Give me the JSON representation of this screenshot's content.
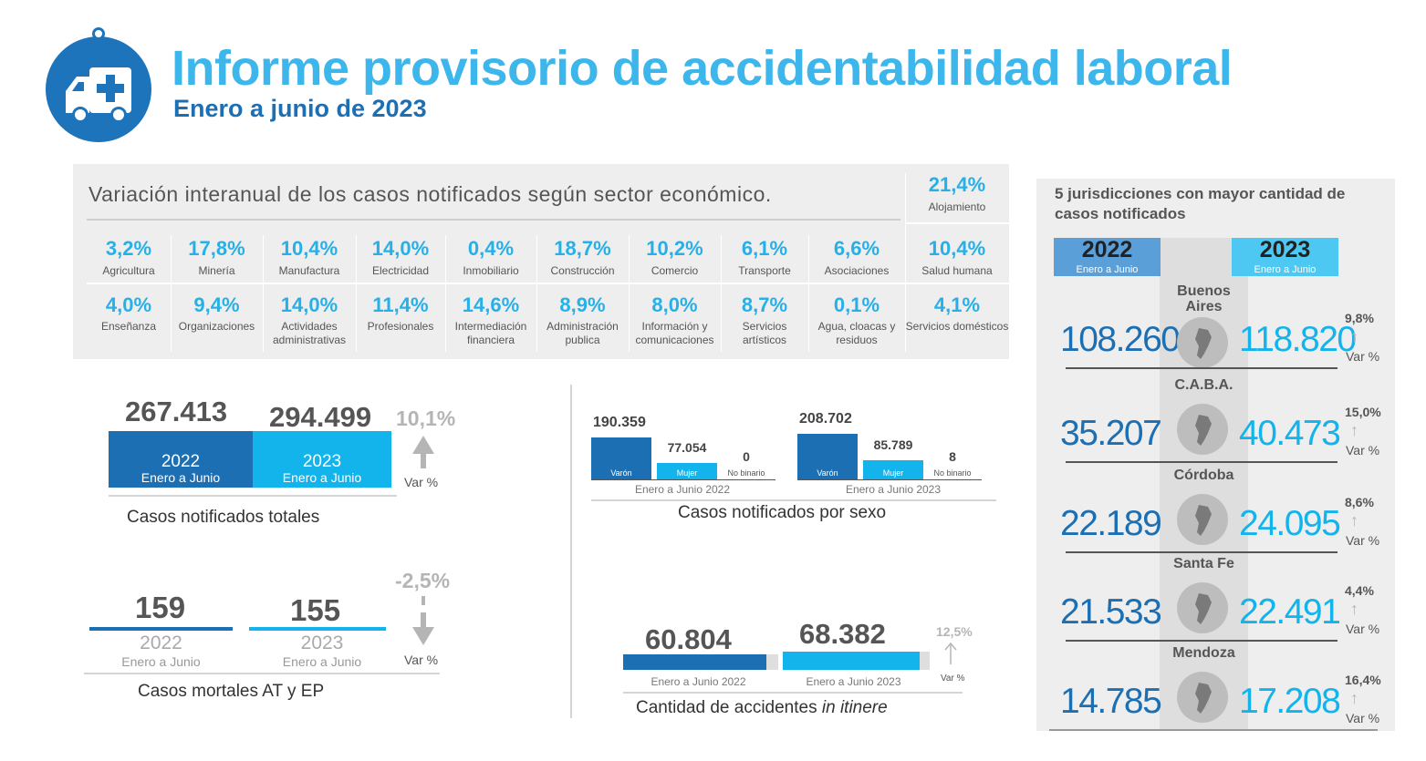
{
  "header": {
    "title": "Informe provisorio de accidentabilidad laboral",
    "subtitle": "Enero a junio de 2023",
    "logo_icon": "ambulance-icon"
  },
  "sectors": {
    "heading": "Variación interanual de los casos notificados según sector económico.",
    "items": [
      {
        "pct": "3,2%",
        "label": "Agricultura"
      },
      {
        "pct": "17,8%",
        "label": "Minería"
      },
      {
        "pct": "10,4%",
        "label": "Manufactura"
      },
      {
        "pct": "14,0%",
        "label": "Electricidad"
      },
      {
        "pct": "0,4%",
        "label": "Inmobiliario"
      },
      {
        "pct": "18,7%",
        "label": "Construcción"
      },
      {
        "pct": "10,2%",
        "label": "Comercio"
      },
      {
        "pct": "6,1%",
        "label": "Transporte"
      },
      {
        "pct": "6,6%",
        "label": "Asociaciones"
      },
      {
        "pct": "10,4%",
        "label": "Salud humana"
      },
      {
        "pct": "4,0%",
        "label": "Enseñanza"
      },
      {
        "pct": "9,4%",
        "label": "Organizaciones"
      },
      {
        "pct": "14,0%",
        "label": "Actividades administrativas"
      },
      {
        "pct": "11,4%",
        "label": "Profesionales"
      },
      {
        "pct": "14,6%",
        "label": "Intermediación financiera"
      },
      {
        "pct": "8,9%",
        "label": "Administración publica"
      },
      {
        "pct": "8,0%",
        "label": "Información y comunicaciones"
      },
      {
        "pct": "8,7%",
        "label": "Servicios artísticos"
      },
      {
        "pct": "0,1%",
        "label": "Agua, cloacas y residuos"
      },
      {
        "pct": "4,1%",
        "label": "Servicios domésticos"
      },
      {
        "pct": "21,4%",
        "label": "Alojamiento"
      }
    ]
  },
  "totals": {
    "title": "Casos notificados totales",
    "v2022": "267.413",
    "v2023": "294.499",
    "year2022": "2022",
    "year2023": "2023",
    "period": "Enero a Junio",
    "var": "10,1%",
    "var_label": "Var %"
  },
  "mortal": {
    "title": "Casos mortales AT y EP",
    "v2022": "159",
    "v2023": "155",
    "year2022": "2022",
    "year2023": "2023",
    "period": "Enero a Junio",
    "var": "-2,5%",
    "var_label": "Var %"
  },
  "sexo": {
    "title": "Casos notificados por sexo",
    "y2022": {
      "varon": "190.359",
      "mujer": "77.054",
      "nobinario": "0",
      "label": "Enero a Junio 2022"
    },
    "y2023": {
      "varon": "208.702",
      "mujer": "85.789",
      "nobinario": "8",
      "label": "Enero a Junio 2023"
    },
    "lbl_varon": "Varón",
    "lbl_mujer": "Mujer",
    "lbl_nobinario": "No binario"
  },
  "itinere": {
    "title": "Cantidad de accidentes",
    "title_italic": "in itinere",
    "v2022": "60.804",
    "v2023": "68.382",
    "label2022": "Enero a Junio  2022",
    "label2023": "Enero a Junio  2023",
    "var": "12,5%",
    "var_label": "Var %"
  },
  "jurisdictions": {
    "title": "5 jurisdicciones con mayor cantidad de casos notificados",
    "year2022": "2022",
    "year2023": "2023",
    "period": "Enero a Junio",
    "var_label": "Var %",
    "rows": [
      {
        "name": "Buenos Aires",
        "v2022": "108.260",
        "v2023": "118.820",
        "var": "9,8%",
        "icon": "buenos-aires-map-icon"
      },
      {
        "name": "C.A.B.A.",
        "v2022": "35.207",
        "v2023": "40.473",
        "var": "15,0%",
        "icon": "caba-map-icon"
      },
      {
        "name": "Córdoba",
        "v2022": "22.189",
        "v2023": "24.095",
        "var": "8,6%",
        "icon": "cordoba-map-icon"
      },
      {
        "name": "Santa Fe",
        "v2022": "21.533",
        "v2023": "22.491",
        "var": "4,4%",
        "icon": "santa-fe-map-icon"
      },
      {
        "name": "Mendoza",
        "v2022": "14.785",
        "v2023": "17.208",
        "var": "16,4%",
        "icon": "mendoza-map-icon"
      }
    ]
  },
  "colors": {
    "dark_blue": "#1d6fb3",
    "light_blue": "#13b3ec",
    "gray": "#b5b5b5"
  }
}
